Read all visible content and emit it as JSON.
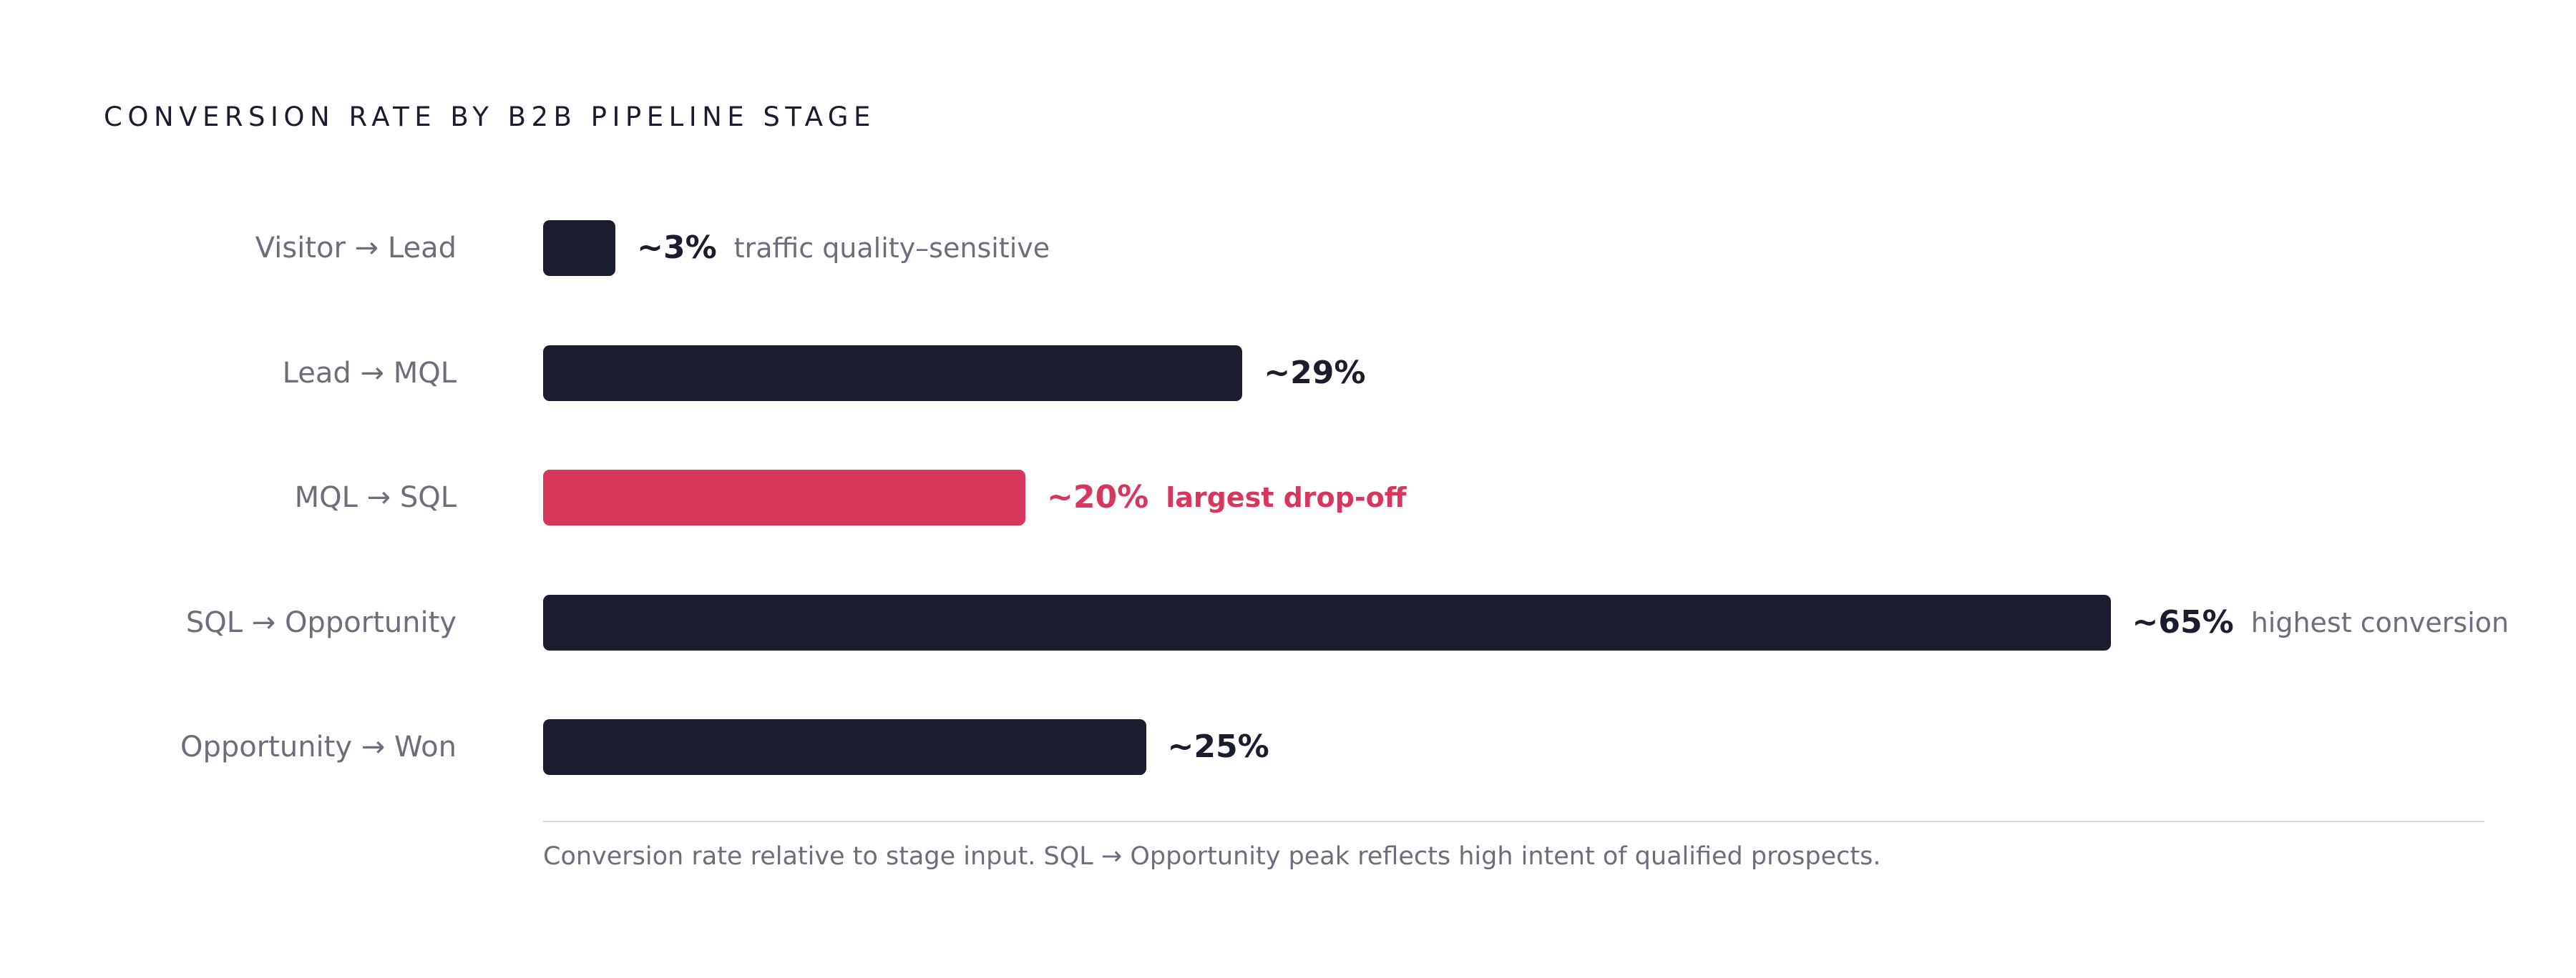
{
  "title": "CONVERSION RATE BY B2B PIPELINE STAGE",
  "footnote": "Conversion rate relative to stage input. SQL → Opportunity peak reflects high intent of qualified prospects.",
  "colors": {
    "bar_default": "#1b1c2e",
    "bar_highlight": "#d7375c",
    "note_default": "#6c6e7a",
    "label_default": "#6c6e7a",
    "value_default": "#1b1c2e"
  },
  "chart_data": {
    "type": "bar",
    "orientation": "horizontal",
    "title": "CONVERSION RATE BY B2B PIPELINE STAGE",
    "categories": [
      "Visitor → Lead",
      "Lead → MQL",
      "MQL → SQL",
      "SQL → Opportunity",
      "Opportunity → Won"
    ],
    "values": [
      3,
      29,
      20,
      65,
      25
    ],
    "value_labels": [
      "~3%",
      "~29%",
      "~20%",
      "~65%",
      "~25%"
    ],
    "annotations": [
      "traffic quality–sensitive",
      "",
      "largest drop-off",
      "highest conversion",
      ""
    ],
    "highlight_index": 2,
    "xlim": [
      0,
      100
    ],
    "unit": "%",
    "grid": false,
    "legend": "none"
  }
}
